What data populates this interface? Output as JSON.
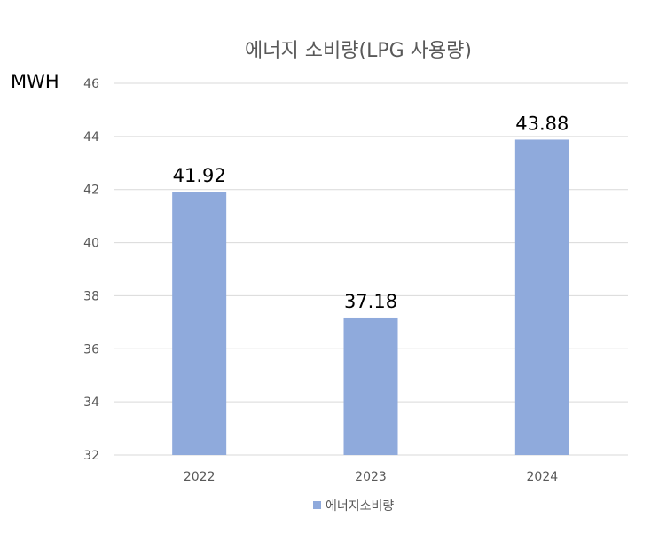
{
  "chart_data": {
    "type": "bar",
    "title": "에너지 소비량(LPG 사용량)",
    "ylabel": "MWH",
    "xlabel": "",
    "categories": [
      "2022",
      "2023",
      "2024"
    ],
    "series": [
      {
        "name": "에너지소비량",
        "values": [
          41.92,
          37.18,
          43.88
        ],
        "color": "#8faadc"
      }
    ],
    "data_labels": [
      "41.92",
      "37.18",
      "43.88"
    ],
    "ylim": [
      32,
      46
    ],
    "yticks": [
      32,
      34,
      36,
      38,
      40,
      42,
      44,
      46
    ],
    "grid": true,
    "legend_position": "bottom"
  }
}
